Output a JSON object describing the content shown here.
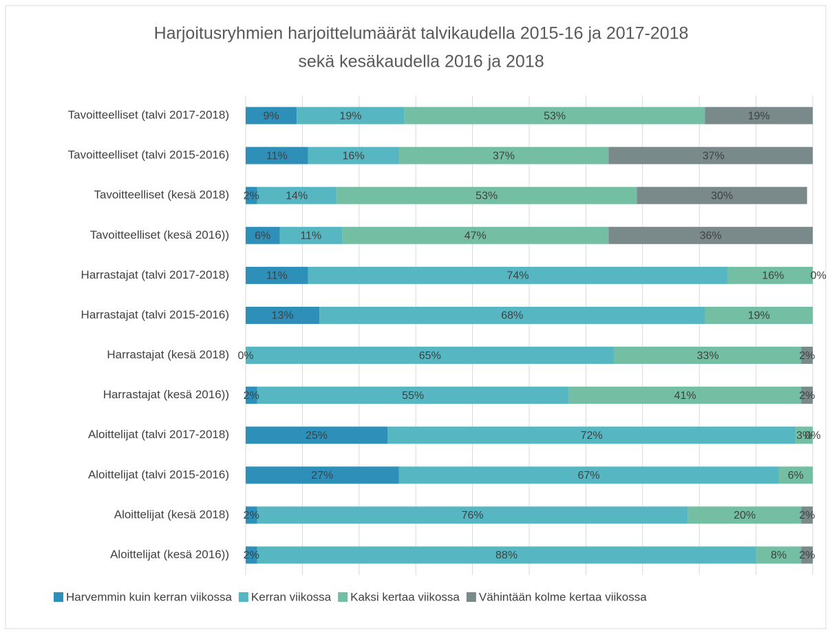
{
  "chart_data": {
    "type": "stacked_barh",
    "title": [
      "Harjoitusryhmien harjoittelumäärät talvikaudella 2015-16 ja 2017-2018",
      "sekä kesäkaudella 2016 ja 2018"
    ],
    "categories": [
      "Tavoitteelliset (talvi 2017-2018)",
      "Tavoitteelliset (talvi 2015-2016)",
      "Tavoitteelliset (kesä 2018)",
      "Tavoitteelliset (kesä 2016))",
      "Harrastajat (talvi 2017-2018)",
      "Harrastajat (talvi 2015-2016)",
      "Harrastajat (kesä 2018)",
      "Harrastajat (kesä 2016))",
      "Aloittelijat (talvi 2017-2018)",
      "Aloittelijat (talvi 2015-2016)",
      "Aloittelijat (kesä 2018)",
      "Aloittelijat (kesä 2016))"
    ],
    "series": [
      {
        "name": "Harvemmin kuin kerran viikossa",
        "color": "#2e8fb9",
        "values": [
          9,
          11,
          2,
          6,
          11,
          13,
          0,
          2,
          25,
          27,
          2,
          2
        ],
        "value_labels": [
          "9%",
          "11%",
          "2%",
          "6%",
          "11%",
          "13%",
          "0%",
          "2%",
          "25%",
          "27%",
          "2%",
          "2%"
        ]
      },
      {
        "name": "Kerran viikossa",
        "color": "#56b6c2",
        "values": [
          19,
          16,
          14,
          11,
          74,
          68,
          65,
          55,
          72,
          67,
          76,
          88
        ],
        "value_labels": [
          "19%",
          "16%",
          "14%",
          "11%",
          "74%",
          "68%",
          "65%",
          "55%",
          "72%",
          "67%",
          "76%",
          "88%"
        ]
      },
      {
        "name": "Kaksi kertaa viikossa",
        "color": "#74bea4",
        "values": [
          53,
          37,
          53,
          47,
          16,
          19,
          33,
          41,
          3,
          6,
          20,
          8
        ],
        "value_labels": [
          "53%",
          "37%",
          "53%",
          "47%",
          "16%",
          "19%",
          "33%",
          "41%",
          "3%",
          "6%",
          "20%",
          "8%"
        ]
      },
      {
        "name": "Vähintään kolme kertaa viikossa",
        "color": "#7a8a8a",
        "values": [
          19,
          37,
          30,
          36,
          0,
          null,
          2,
          2,
          0,
          null,
          2,
          2
        ],
        "value_labels": [
          "19%",
          "37%",
          "30%",
          "36%",
          "0%",
          null,
          "2%",
          "2%",
          "0%",
          null,
          "2%",
          "2%"
        ]
      }
    ],
    "xlim": [
      0,
      100
    ],
    "xticks": [
      0,
      10,
      20,
      30,
      40,
      50,
      60,
      70,
      80,
      90,
      100
    ],
    "grid": true,
    "legend": "bottom"
  }
}
